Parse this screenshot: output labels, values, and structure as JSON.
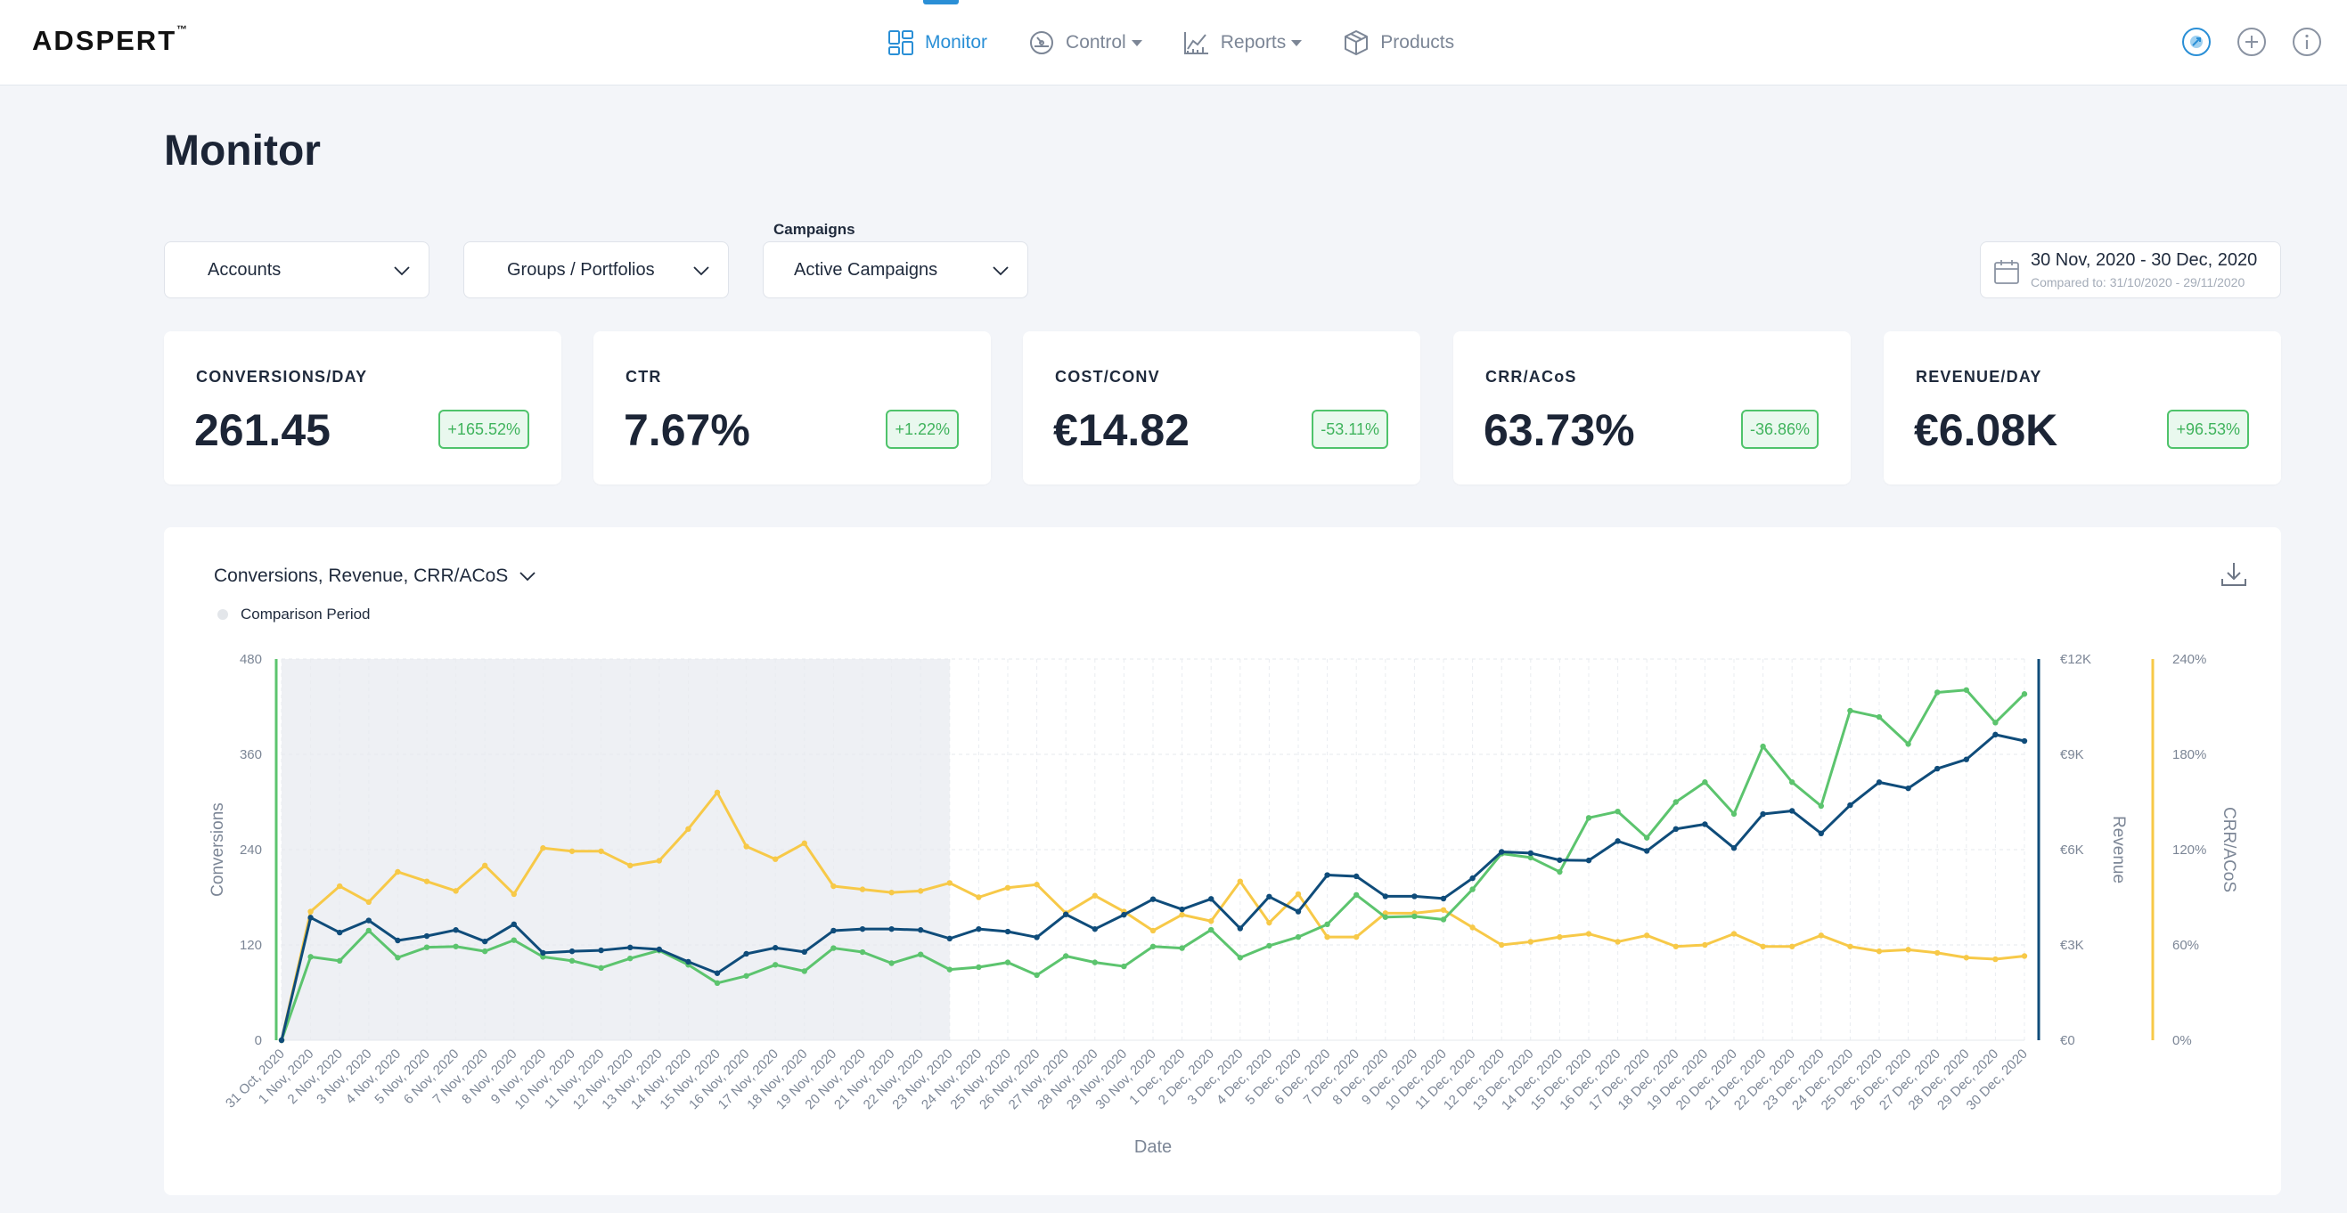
{
  "app": {
    "logo": "ADSPERT",
    "logo_mark": "™"
  },
  "nav": [
    {
      "label": "Monitor",
      "icon": "dashboard-icon",
      "active": true,
      "dropdown": false
    },
    {
      "label": "Control",
      "icon": "gauge-icon",
      "active": false,
      "dropdown": true
    },
    {
      "label": "Reports",
      "icon": "line-chart-icon",
      "active": false,
      "dropdown": true
    },
    {
      "label": "Products",
      "icon": "box-icon",
      "active": false,
      "dropdown": false
    }
  ],
  "page": {
    "title": "Monitor"
  },
  "filters": {
    "accounts": "Accounts",
    "groups": "Groups / Portfolios",
    "campaigns_label": "Campaigns",
    "campaigns": "Active Campaigns"
  },
  "daterange": {
    "range": "30 Nov, 2020 - 30 Dec, 2020",
    "compared": "Compared to: 31/10/2020 - 29/11/2020"
  },
  "kpis": [
    {
      "label": "CONVERSIONS/DAY",
      "value": "261.45",
      "change": "+165.52%"
    },
    {
      "label": "CTR",
      "value": "7.67%",
      "change": "+1.22%"
    },
    {
      "label": "COST/CONV",
      "value": "€14.82",
      "change": "-53.11%"
    },
    {
      "label": "CRR/ACoS",
      "value": "63.73%",
      "change": "-36.86%"
    },
    {
      "label": "REVENUE/DAY",
      "value": "€6.08K",
      "change": "+96.53%"
    }
  ],
  "chart": {
    "selector": "Conversions, Revenue, CRR/ACoS",
    "legend_comparison": "Comparison Period"
  },
  "colors": {
    "accent": "#2a8fd6",
    "conversions": "#5cc46e",
    "revenue": "#0f4c7a",
    "crr": "#f7c948",
    "positive": "#3fb35c"
  },
  "chart_data": {
    "type": "line",
    "xlabel": "Date",
    "x": [
      "31 Oct, 2020",
      "1 Nov, 2020",
      "2 Nov, 2020",
      "3 Nov, 2020",
      "4 Nov, 2020",
      "5 Nov, 2020",
      "6 Nov, 2020",
      "7 Nov, 2020",
      "8 Nov, 2020",
      "9 Nov, 2020",
      "10 Nov, 2020",
      "11 Nov, 2020",
      "12 Nov, 2020",
      "13 Nov, 2020",
      "14 Nov, 2020",
      "15 Nov, 2020",
      "16 Nov, 2020",
      "17 Nov, 2020",
      "18 Nov, 2020",
      "19 Nov, 2020",
      "20 Nov, 2020",
      "21 Nov, 2020",
      "22 Nov, 2020",
      "23 Nov, 2020",
      "24 Nov, 2020",
      "25 Nov, 2020",
      "26 Nov, 2020",
      "27 Nov, 2020",
      "28 Nov, 2020",
      "29 Nov, 2020",
      "30 Nov, 2020",
      "1 Dec, 2020",
      "2 Dec, 2020",
      "3 Dec, 2020",
      "4 Dec, 2020",
      "5 Dec, 2020",
      "6 Dec, 2020",
      "7 Dec, 2020",
      "8 Dec, 2020",
      "9 Dec, 2020",
      "10 Dec, 2020",
      "11 Dec, 2020",
      "12 Dec, 2020",
      "13 Dec, 2020",
      "14 Dec, 2020",
      "15 Dec, 2020",
      "16 Dec, 2020",
      "17 Dec, 2020",
      "18 Dec, 2020",
      "19 Dec, 2020",
      "20 Dec, 2020",
      "21 Dec, 2020",
      "22 Dec, 2020",
      "23 Dec, 2020",
      "24 Dec, 2020",
      "25 Dec, 2020",
      "26 Dec, 2020",
      "27 Dec, 2020",
      "28 Dec, 2020",
      "29 Dec, 2020",
      "30 Dec, 2020"
    ],
    "comparison_period": [
      "31 Oct, 2020",
      "23 Nov, 2020"
    ],
    "axes": {
      "left": {
        "label": "Conversions",
        "range": [
          0,
          480
        ],
        "ticks": [
          "0",
          "120",
          "240",
          "360",
          "480"
        ]
      },
      "right1": {
        "label": "Revenue",
        "range": [
          0,
          12000
        ],
        "ticks": [
          "€0",
          "€3K",
          "€6K",
          "€9K",
          "€12K"
        ]
      },
      "right2": {
        "label": "CRR/ACoS",
        "range": [
          0,
          240
        ],
        "ticks": [
          "0%",
          "60%",
          "120%",
          "180%",
          "240%"
        ]
      }
    },
    "grid": true,
    "series": [
      {
        "name": "Conversions",
        "axis": "left",
        "color": "#5cc46e",
        "values": [
          0,
          105,
          100,
          138,
          104,
          117,
          118,
          112,
          126,
          105,
          100,
          91,
          103,
          113,
          95,
          72,
          81,
          95,
          87,
          116,
          111,
          97,
          108,
          89,
          92,
          98,
          82,
          106,
          98,
          93,
          118,
          116,
          139,
          104,
          119,
          130,
          146,
          183,
          155,
          156,
          152,
          190,
          235,
          230,
          212,
          280,
          288,
          255,
          300,
          325,
          285,
          370,
          325,
          295,
          415,
          407,
          373,
          438,
          441,
          400,
          436
        ]
      },
      {
        "name": "Revenue",
        "axis": "right1",
        "color": "#0f4c7a",
        "values": [
          0,
          3860,
          3390,
          3770,
          3140,
          3280,
          3470,
          3110,
          3650,
          2750,
          2800,
          2830,
          2920,
          2860,
          2470,
          2110,
          2720,
          2910,
          2780,
          3450,
          3500,
          3500,
          3470,
          3200,
          3500,
          3420,
          3240,
          3960,
          3500,
          3950,
          4440,
          4120,
          4450,
          3520,
          4520,
          4050,
          5200,
          5160,
          4530,
          4530,
          4460,
          5100,
          5930,
          5890,
          5670,
          5660,
          6270,
          5960,
          6650,
          6800,
          6050,
          7120,
          7220,
          6510,
          7400,
          8120,
          7930,
          8550,
          8840,
          9620,
          9420
        ]
      },
      {
        "name": "CRR/ACoS",
        "axis": "right2",
        "color": "#f7c948",
        "values": [
          0,
          81,
          97,
          87,
          106,
          100,
          94,
          110,
          92,
          121,
          119,
          119,
          110,
          113,
          133,
          156,
          122,
          114,
          124,
          97,
          95,
          93,
          94,
          99,
          90,
          96,
          98,
          80,
          91,
          81,
          69,
          79,
          75,
          100,
          74,
          92,
          65,
          65,
          80,
          80,
          82,
          71,
          60,
          62,
          65,
          67,
          62,
          66,
          59,
          60,
          67,
          59,
          59,
          66,
          59,
          56,
          57,
          55,
          52,
          51,
          53
        ]
      }
    ]
  }
}
